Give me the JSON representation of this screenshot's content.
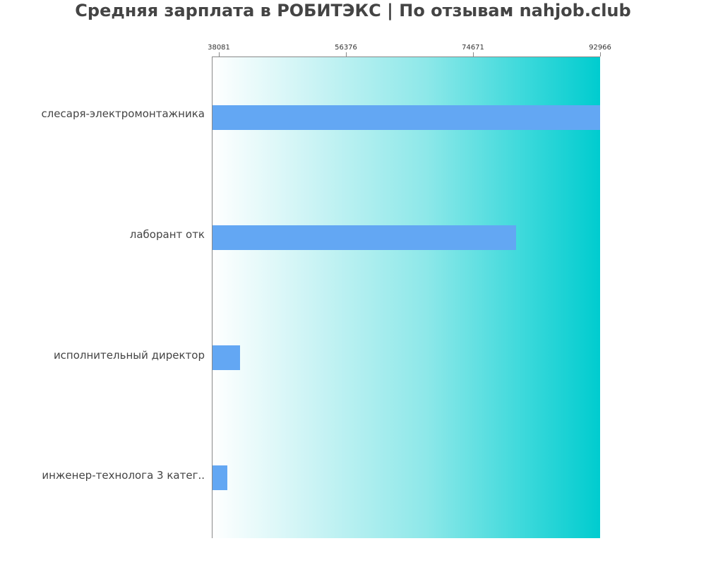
{
  "chart_data": {
    "type": "bar",
    "orientation": "horizontal",
    "title": "Средняя зарплата в РОБИТЭКС | По отзывам nahjob.club",
    "xlabel": "",
    "ylabel": "",
    "categories": [
      "слесаря-электромонтажника",
      "лаборант отк",
      "исполнительный директор",
      "инженер-технолога 3 катег.."
    ],
    "values": [
      92966,
      80000,
      41000,
      39200
    ],
    "xlim": [
      38081,
      92966
    ],
    "ticks": [
      "38081",
      "56376",
      "74671",
      "92966"
    ],
    "grid": false,
    "legend": null,
    "colors": {
      "bar": "#63a7f3",
      "background_gradient_start": "#ffffff",
      "background_gradient_end": "#00cccf"
    }
  }
}
